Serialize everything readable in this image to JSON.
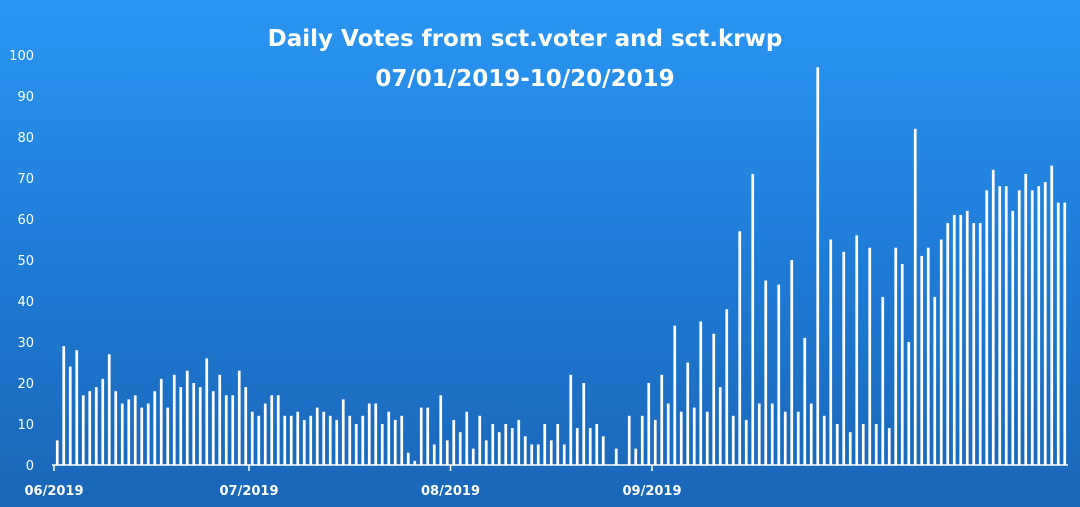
{
  "chart_data": {
    "type": "bar",
    "title": "Daily Votes from sct.voter and sct.krwp",
    "subtitle": "07/01/2019-10/20/2019",
    "xlabel": "",
    "ylabel": "",
    "ylim": [
      0,
      100
    ],
    "yticks": [
      0,
      10,
      20,
      30,
      40,
      50,
      60,
      70,
      80,
      90,
      100
    ],
    "xtick_labels": [
      "06/2019",
      "07/2019",
      "08/2019",
      "09/2019"
    ],
    "grid": false,
    "legend": "none",
    "bar_color": "#ffffff",
    "background_top": "#2a97f3",
    "background_bottom": "#1a66b8",
    "series": [
      {
        "values": [
          6,
          29,
          24,
          28,
          17,
          18,
          19,
          21,
          27,
          18,
          15,
          16,
          17,
          14,
          15,
          18,
          21,
          14,
          22,
          19,
          23,
          20,
          19,
          26,
          18,
          22,
          17,
          17,
          23,
          19,
          13,
          12,
          15,
          17,
          17,
          12,
          12,
          13,
          11,
          12,
          14,
          13,
          12,
          11,
          16,
          12,
          10,
          12,
          15,
          15,
          10,
          13,
          11,
          12,
          3,
          1,
          14,
          14,
          5,
          17,
          6,
          11,
          8,
          13,
          4,
          12,
          6,
          10,
          8,
          10,
          9,
          11,
          7,
          5,
          5,
          10,
          6,
          10,
          5,
          22,
          9,
          20,
          9,
          10,
          7,
          0,
          4,
          0,
          12,
          4,
          12,
          20,
          11,
          22,
          15,
          34,
          13,
          25,
          14,
          35,
          13,
          32,
          19,
          38,
          12,
          57,
          11,
          71,
          15,
          45,
          15,
          44,
          13,
          50,
          13,
          31,
          15,
          97,
          12,
          55,
          10,
          52,
          8,
          56,
          10,
          53,
          10,
          41,
          9,
          53,
          49,
          30,
          82,
          51,
          53,
          41,
          55,
          59,
          61,
          61,
          62,
          59,
          59,
          67,
          72,
          68,
          68,
          62,
          67,
          71,
          67,
          68,
          69,
          73,
          64,
          64
        ]
      }
    ]
  }
}
